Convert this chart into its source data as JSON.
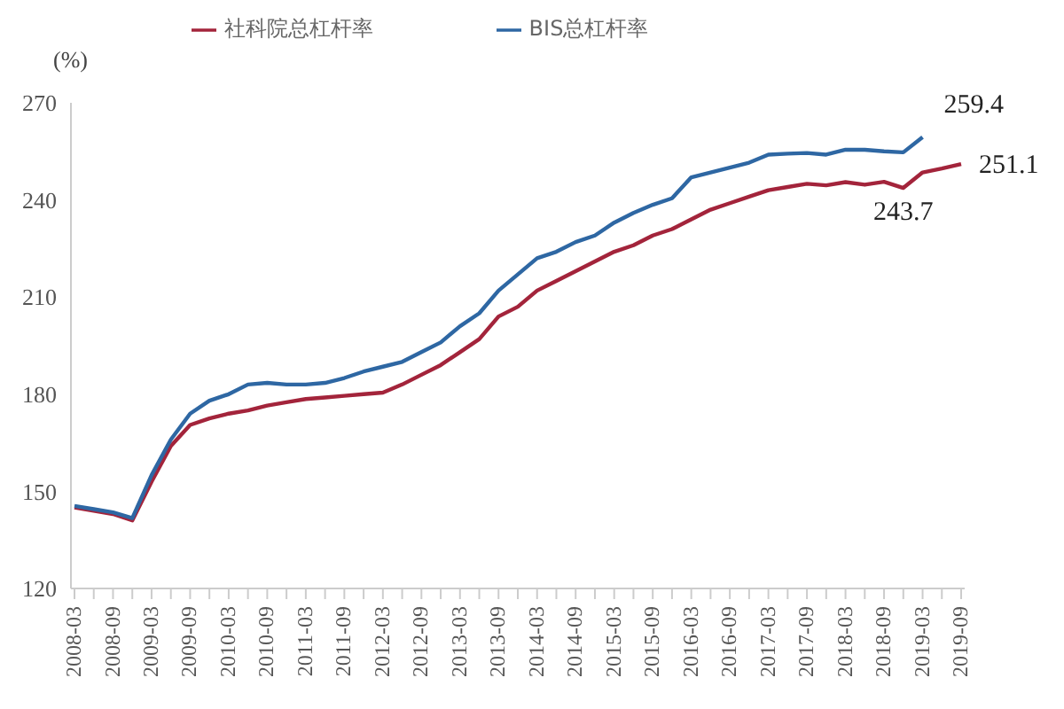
{
  "chart_data": {
    "type": "line",
    "ylabel": "(%)",
    "categories": [
      "2008-03",
      null,
      "2008-09",
      null,
      "2009-03",
      null,
      "2009-09",
      null,
      "2010-03",
      null,
      "2010-09",
      null,
      "2011-03",
      null,
      "2011-09",
      null,
      "2012-03",
      null,
      "2012-09",
      null,
      "2013-03",
      null,
      "2013-09",
      null,
      "2014-03",
      null,
      "2014-09",
      null,
      "2015-03",
      null,
      "2015-09",
      null,
      "2016-03",
      null,
      "2016-09",
      null,
      "2017-03",
      null,
      "2017-09",
      null,
      "2018-03",
      null,
      "2018-09",
      null,
      "2019-03",
      null,
      "2019-09"
    ],
    "series": [
      {
        "name": "社科院总杠杆率",
        "color": "#a3243b",
        "values": [
          145,
          144,
          143,
          141,
          153,
          164,
          170.5,
          172.5,
          174,
          175,
          176.5,
          177.5,
          178.5,
          179,
          179.5,
          180,
          180.5,
          183,
          186,
          189,
          193,
          197,
          204,
          207,
          212,
          215,
          218,
          221,
          224,
          226,
          229,
          231,
          234,
          237,
          239,
          241,
          243,
          244,
          245,
          244.5,
          245.5,
          244.7,
          245.6,
          243.7,
          248.5,
          249.7,
          251.1
        ],
        "value_labels": [
          null,
          null,
          null,
          null,
          null,
          null,
          null,
          null,
          null,
          null,
          null,
          null,
          null,
          null,
          null,
          null,
          null,
          null,
          null,
          null,
          null,
          null,
          null,
          null,
          null,
          null,
          null,
          null,
          null,
          null,
          null,
          null,
          null,
          null,
          null,
          null,
          null,
          null,
          null,
          null,
          null,
          null,
          null,
          "243.7",
          null,
          null,
          "251.1"
        ]
      },
      {
        "name": "BIS总杠杆率",
        "color": "#2e67a3",
        "values": [
          145.5,
          144.5,
          143.5,
          141.7,
          155,
          166,
          174,
          178,
          180,
          183,
          183.5,
          183,
          183,
          183.5,
          185,
          187,
          188.5,
          190,
          193,
          196,
          201,
          205,
          212,
          217,
          222,
          224,
          227,
          229,
          233,
          236,
          238.5,
          240.5,
          247,
          248.5,
          250,
          251.5,
          254,
          254.3,
          254.5,
          254,
          255.5,
          255.5,
          255,
          254.7,
          259.4,
          null,
          null
        ],
        "value_labels": [
          null,
          null,
          null,
          null,
          null,
          null,
          null,
          null,
          null,
          null,
          null,
          null,
          null,
          null,
          null,
          null,
          null,
          null,
          null,
          null,
          null,
          null,
          null,
          null,
          null,
          null,
          null,
          null,
          null,
          null,
          null,
          null,
          null,
          null,
          null,
          null,
          null,
          null,
          null,
          null,
          null,
          null,
          null,
          null,
          "259.4",
          null,
          null
        ]
      }
    ],
    "ylim": [
      120,
      270
    ],
    "yticks": [
      120,
      150,
      180,
      210,
      240,
      270
    ],
    "grid": false,
    "legend": "top",
    "marker": "none",
    "line_style": "solid"
  }
}
